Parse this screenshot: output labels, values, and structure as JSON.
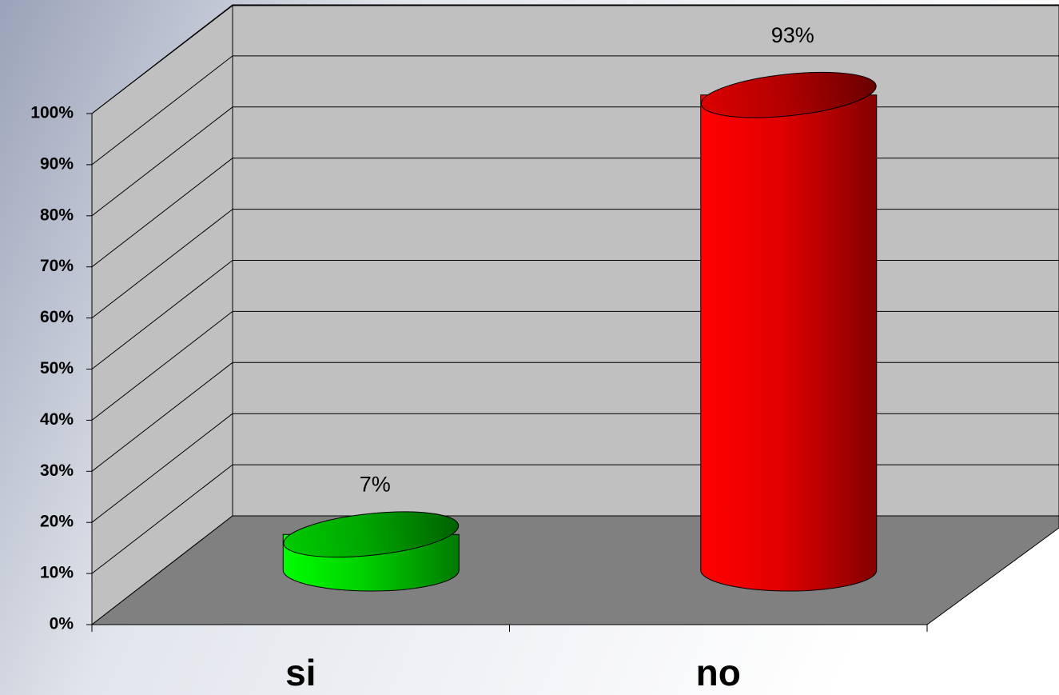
{
  "chart_data": {
    "type": "bar3d",
    "categories": [
      "si",
      "no"
    ],
    "values": [
      7,
      93
    ],
    "value_labels": [
      "7%",
      "93%"
    ],
    "colors": [
      "#00dd00",
      "#ee0000"
    ],
    "ylim": [
      0,
      100
    ],
    "yticks": [
      {
        "value": 0,
        "label": "0%"
      },
      {
        "value": 10,
        "label": "10%"
      },
      {
        "value": 20,
        "label": "20%"
      },
      {
        "value": 30,
        "label": "30%"
      },
      {
        "value": 40,
        "label": "40%"
      },
      {
        "value": 50,
        "label": "50%"
      },
      {
        "value": 60,
        "label": "60%"
      },
      {
        "value": 70,
        "label": "70%"
      },
      {
        "value": 80,
        "label": "80%"
      },
      {
        "value": 90,
        "label": "90%"
      },
      {
        "value": 100,
        "label": "100%"
      }
    ],
    "grid": true
  }
}
